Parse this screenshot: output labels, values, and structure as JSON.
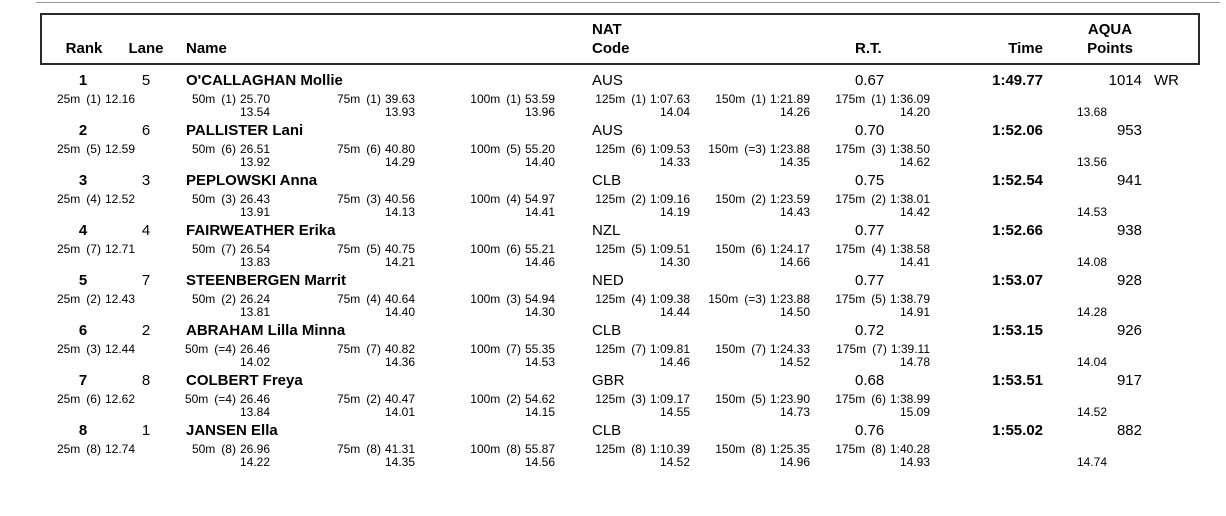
{
  "header": {
    "rank": "Rank",
    "lane": "Lane",
    "name": "Name",
    "nat_line1": "NAT",
    "nat_line2": "Code",
    "rt": "R.T.",
    "time": "Time",
    "points_line1": "AQUA",
    "points_line2": "Points"
  },
  "rows": [
    {
      "rank": "1",
      "lane": "5",
      "name": "O'CALLAGHAN Mollie",
      "nat": "AUS",
      "rt": "0.67",
      "time": "1:49.77",
      "points": "1014",
      "record": "WR",
      "splits": [
        {
          "label": "25m",
          "pos": "(1)",
          "time": "12.16",
          "diff": ""
        },
        {
          "label": "50m",
          "pos": "(1)",
          "time": "25.70",
          "diff": "13.54"
        },
        {
          "label": "75m",
          "pos": "(1)",
          "time": "39.63",
          "diff": "13.93"
        },
        {
          "label": "100m",
          "pos": "(1)",
          "time": "53.59",
          "diff": "13.96"
        },
        {
          "label": "125m",
          "pos": "(1)",
          "time": "1:07.63",
          "diff": "14.04"
        },
        {
          "label": "150m",
          "pos": "(1)",
          "time": "1:21.89",
          "diff": "14.26"
        },
        {
          "label": "175m",
          "pos": "(1)",
          "time": "1:36.09",
          "diff": "14.20"
        }
      ],
      "final_diff": "13.68"
    },
    {
      "rank": "2",
      "lane": "6",
      "name": "PALLISTER Lani",
      "nat": "AUS",
      "rt": "0.70",
      "time": "1:52.06",
      "points": "953",
      "record": "",
      "splits": [
        {
          "label": "25m",
          "pos": "(5)",
          "time": "12.59",
          "diff": ""
        },
        {
          "label": "50m",
          "pos": "(6)",
          "time": "26.51",
          "diff": "13.92"
        },
        {
          "label": "75m",
          "pos": "(6)",
          "time": "40.80",
          "diff": "14.29"
        },
        {
          "label": "100m",
          "pos": "(5)",
          "time": "55.20",
          "diff": "14.40"
        },
        {
          "label": "125m",
          "pos": "(6)",
          "time": "1:09.53",
          "diff": "14.33"
        },
        {
          "label": "150m",
          "pos": "(=3)",
          "time": "1:23.88",
          "diff": "14.35"
        },
        {
          "label": "175m",
          "pos": "(3)",
          "time": "1:38.50",
          "diff": "14.62"
        }
      ],
      "final_diff": "13.56"
    },
    {
      "rank": "3",
      "lane": "3",
      "name": "PEPLOWSKI Anna",
      "nat": "CLB",
      "rt": "0.75",
      "time": "1:52.54",
      "points": "941",
      "record": "",
      "splits": [
        {
          "label": "25m",
          "pos": "(4)",
          "time": "12.52",
          "diff": ""
        },
        {
          "label": "50m",
          "pos": "(3)",
          "time": "26.43",
          "diff": "13.91"
        },
        {
          "label": "75m",
          "pos": "(3)",
          "time": "40.56",
          "diff": "14.13"
        },
        {
          "label": "100m",
          "pos": "(4)",
          "time": "54.97",
          "diff": "14.41"
        },
        {
          "label": "125m",
          "pos": "(2)",
          "time": "1:09.16",
          "diff": "14.19"
        },
        {
          "label": "150m",
          "pos": "(2)",
          "time": "1:23.59",
          "diff": "14.43"
        },
        {
          "label": "175m",
          "pos": "(2)",
          "time": "1:38.01",
          "diff": "14.42"
        }
      ],
      "final_diff": "14.53"
    },
    {
      "rank": "4",
      "lane": "4",
      "name": "FAIRWEATHER Erika",
      "nat": "NZL",
      "rt": "0.77",
      "time": "1:52.66",
      "points": "938",
      "record": "",
      "splits": [
        {
          "label": "25m",
          "pos": "(7)",
          "time": "12.71",
          "diff": ""
        },
        {
          "label": "50m",
          "pos": "(7)",
          "time": "26.54",
          "diff": "13.83"
        },
        {
          "label": "75m",
          "pos": "(5)",
          "time": "40.75",
          "diff": "14.21"
        },
        {
          "label": "100m",
          "pos": "(6)",
          "time": "55.21",
          "diff": "14.46"
        },
        {
          "label": "125m",
          "pos": "(5)",
          "time": "1:09.51",
          "diff": "14.30"
        },
        {
          "label": "150m",
          "pos": "(6)",
          "time": "1:24.17",
          "diff": "14.66"
        },
        {
          "label": "175m",
          "pos": "(4)",
          "time": "1:38.58",
          "diff": "14.41"
        }
      ],
      "final_diff": "14.08"
    },
    {
      "rank": "5",
      "lane": "7",
      "name": "STEENBERGEN Marrit",
      "nat": "NED",
      "rt": "0.77",
      "time": "1:53.07",
      "points": "928",
      "record": "",
      "splits": [
        {
          "label": "25m",
          "pos": "(2)",
          "time": "12.43",
          "diff": ""
        },
        {
          "label": "50m",
          "pos": "(2)",
          "time": "26.24",
          "diff": "13.81"
        },
        {
          "label": "75m",
          "pos": "(4)",
          "time": "40.64",
          "diff": "14.40"
        },
        {
          "label": "100m",
          "pos": "(3)",
          "time": "54.94",
          "diff": "14.30"
        },
        {
          "label": "125m",
          "pos": "(4)",
          "time": "1:09.38",
          "diff": "14.44"
        },
        {
          "label": "150m",
          "pos": "(=3)",
          "time": "1:23.88",
          "diff": "14.50"
        },
        {
          "label": "175m",
          "pos": "(5)",
          "time": "1:38.79",
          "diff": "14.91"
        }
      ],
      "final_diff": "14.28"
    },
    {
      "rank": "6",
      "lane": "2",
      "name": "ABRAHAM Lilla Minna",
      "nat": "CLB",
      "rt": "0.72",
      "time": "1:53.15",
      "points": "926",
      "record": "",
      "splits": [
        {
          "label": "25m",
          "pos": "(3)",
          "time": "12.44",
          "diff": ""
        },
        {
          "label": "50m",
          "pos": "(=4)",
          "time": "26.46",
          "diff": "14.02"
        },
        {
          "label": "75m",
          "pos": "(7)",
          "time": "40.82",
          "diff": "14.36"
        },
        {
          "label": "100m",
          "pos": "(7)",
          "time": "55.35",
          "diff": "14.53"
        },
        {
          "label": "125m",
          "pos": "(7)",
          "time": "1:09.81",
          "diff": "14.46"
        },
        {
          "label": "150m",
          "pos": "(7)",
          "time": "1:24.33",
          "diff": "14.52"
        },
        {
          "label": "175m",
          "pos": "(7)",
          "time": "1:39.11",
          "diff": "14.78"
        }
      ],
      "final_diff": "14.04"
    },
    {
      "rank": "7",
      "lane": "8",
      "name": "COLBERT Freya",
      "nat": "GBR",
      "rt": "0.68",
      "time": "1:53.51",
      "points": "917",
      "record": "",
      "splits": [
        {
          "label": "25m",
          "pos": "(6)",
          "time": "12.62",
          "diff": ""
        },
        {
          "label": "50m",
          "pos": "(=4)",
          "time": "26.46",
          "diff": "13.84"
        },
        {
          "label": "75m",
          "pos": "(2)",
          "time": "40.47",
          "diff": "14.01"
        },
        {
          "label": "100m",
          "pos": "(2)",
          "time": "54.62",
          "diff": "14.15"
        },
        {
          "label": "125m",
          "pos": "(3)",
          "time": "1:09.17",
          "diff": "14.55"
        },
        {
          "label": "150m",
          "pos": "(5)",
          "time": "1:23.90",
          "diff": "14.73"
        },
        {
          "label": "175m",
          "pos": "(6)",
          "time": "1:38.99",
          "diff": "15.09"
        }
      ],
      "final_diff": "14.52"
    },
    {
      "rank": "8",
      "lane": "1",
      "name": "JANSEN Ella",
      "nat": "CLB",
      "rt": "0.76",
      "time": "1:55.02",
      "points": "882",
      "record": "",
      "splits": [
        {
          "label": "25m",
          "pos": "(8)",
          "time": "12.74",
          "diff": ""
        },
        {
          "label": "50m",
          "pos": "(8)",
          "time": "26.96",
          "diff": "14.22"
        },
        {
          "label": "75m",
          "pos": "(8)",
          "time": "41.31",
          "diff": "14.35"
        },
        {
          "label": "100m",
          "pos": "(8)",
          "time": "55.87",
          "diff": "14.56"
        },
        {
          "label": "125m",
          "pos": "(8)",
          "time": "1:10.39",
          "diff": "14.52"
        },
        {
          "label": "150m",
          "pos": "(8)",
          "time": "1:25.35",
          "diff": "14.96"
        },
        {
          "label": "175m",
          "pos": "(8)",
          "time": "1:40.28",
          "diff": "14.93"
        }
      ],
      "final_diff": "14.74"
    }
  ]
}
